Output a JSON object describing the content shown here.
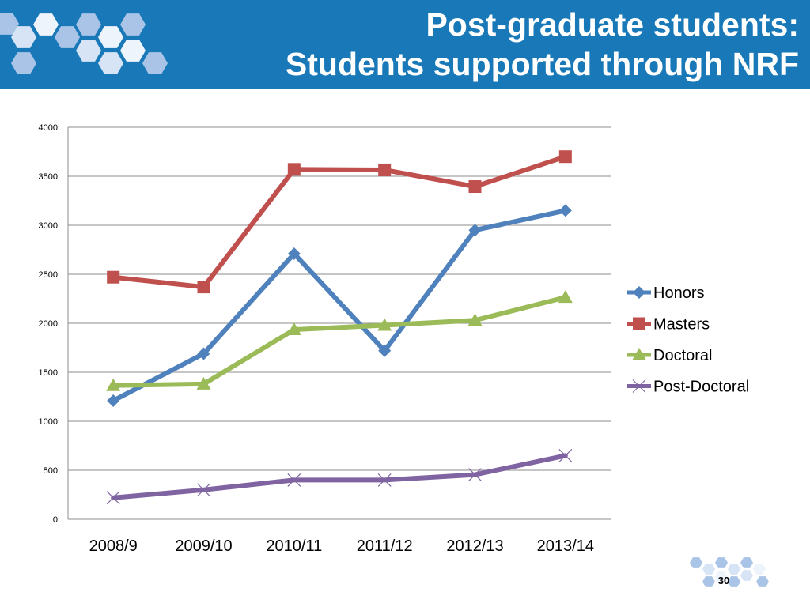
{
  "header": {
    "title_line1": "Post-graduate students:",
    "title_line2": "Students supported through NRF",
    "background_color": "#1878b8"
  },
  "footer": {
    "page_number": "30"
  },
  "chart_data": {
    "type": "line",
    "title": "",
    "xlabel": "",
    "ylabel": "",
    "categories": [
      "2008/9",
      "2009/10",
      "2010/11",
      "2011/12",
      "2012/13",
      "2013/14"
    ],
    "ylim": [
      0,
      4000
    ],
    "yticks": [
      0,
      500,
      1000,
      1500,
      2000,
      2500,
      3000,
      3500,
      4000
    ],
    "grid": true,
    "legend_position": "right",
    "series": [
      {
        "name": "Honors",
        "values": [
          1210,
          1690,
          2710,
          1720,
          2950,
          3150
        ],
        "color": "#4f81bd",
        "marker": "diamond"
      },
      {
        "name": "Masters",
        "values": [
          2470,
          2370,
          3570,
          3565,
          3395,
          3700
        ],
        "color": "#c0504d",
        "marker": "square"
      },
      {
        "name": "Doctoral",
        "values": [
          1365,
          1380,
          1935,
          1980,
          2030,
          2265
        ],
        "color": "#9bbb59",
        "marker": "triangle"
      },
      {
        "name": "Post-Doctoral",
        "values": [
          220,
          300,
          400,
          400,
          455,
          650
        ],
        "color": "#8064a2",
        "marker": "x"
      }
    ]
  }
}
